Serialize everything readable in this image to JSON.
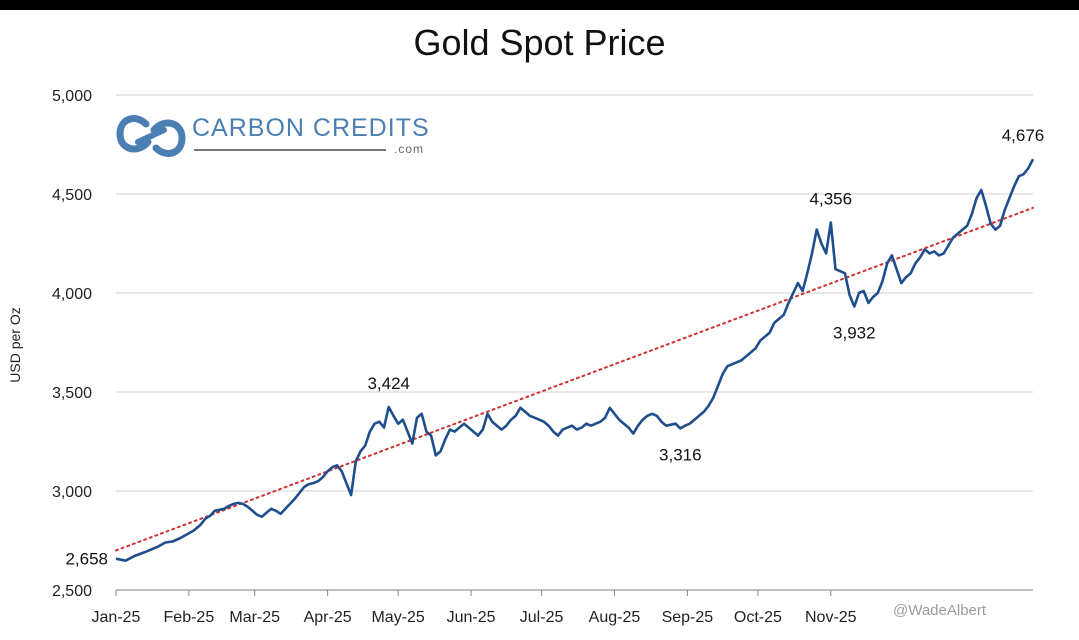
{
  "chart_data": {
    "type": "line",
    "title": "Gold Spot Price",
    "ylabel": "USD per Oz",
    "xlabel": "",
    "ylim": [
      2500,
      5000
    ],
    "yticks": [
      "2,500",
      "3,000",
      "3,500",
      "4,000",
      "4,500",
      "5,000"
    ],
    "ytick_values": [
      2500,
      3000,
      3500,
      4000,
      4500,
      5000
    ],
    "xtick_labels": [
      "Jan-25",
      "Feb-25",
      "Mar-25",
      "Apr-25",
      "May-25",
      "Jun-25",
      "Jul-25",
      "Aug-25",
      "Sep-25",
      "Oct-25",
      "Nov-25"
    ],
    "xtick_days": [
      0,
      31,
      59,
      90,
      120,
      151,
      181,
      212,
      243,
      273,
      304
    ],
    "xlim_days": [
      0,
      374
    ],
    "series": [
      {
        "name": "Gold Spot Price",
        "color": "#1f4e8c",
        "points": [
          [
            0,
            2658
          ],
          [
            4,
            2648
          ],
          [
            8,
            2672
          ],
          [
            12,
            2690
          ],
          [
            15,
            2705
          ],
          [
            18,
            2720
          ],
          [
            21,
            2740
          ],
          [
            24,
            2745
          ],
          [
            27,
            2760
          ],
          [
            30,
            2780
          ],
          [
            33,
            2800
          ],
          [
            36,
            2830
          ],
          [
            38,
            2860
          ],
          [
            40,
            2875
          ],
          [
            42,
            2900
          ],
          [
            44,
            2905
          ],
          [
            46,
            2910
          ],
          [
            48,
            2925
          ],
          [
            50,
            2935
          ],
          [
            52,
            2940
          ],
          [
            54,
            2935
          ],
          [
            56,
            2920
          ],
          [
            58,
            2900
          ],
          [
            60,
            2880
          ],
          [
            62,
            2870
          ],
          [
            64,
            2890
          ],
          [
            66,
            2910
          ],
          [
            68,
            2900
          ],
          [
            70,
            2885
          ],
          [
            72,
            2910
          ],
          [
            74,
            2935
          ],
          [
            76,
            2960
          ],
          [
            78,
            2990
          ],
          [
            80,
            3020
          ],
          [
            82,
            3035
          ],
          [
            84,
            3040
          ],
          [
            86,
            3050
          ],
          [
            88,
            3070
          ],
          [
            90,
            3100
          ],
          [
            92,
            3120
          ],
          [
            94,
            3130
          ],
          [
            96,
            3100
          ],
          [
            98,
            3040
          ],
          [
            100,
            2980
          ],
          [
            102,
            3150
          ],
          [
            104,
            3200
          ],
          [
            106,
            3230
          ],
          [
            108,
            3300
          ],
          [
            110,
            3340
          ],
          [
            112,
            3350
          ],
          [
            114,
            3320
          ],
          [
            116,
            3424
          ],
          [
            118,
            3380
          ],
          [
            120,
            3340
          ],
          [
            122,
            3360
          ],
          [
            124,
            3300
          ],
          [
            126,
            3240
          ],
          [
            128,
            3370
          ],
          [
            130,
            3390
          ],
          [
            132,
            3300
          ],
          [
            134,
            3280
          ],
          [
            136,
            3180
          ],
          [
            138,
            3200
          ],
          [
            140,
            3260
          ],
          [
            142,
            3310
          ],
          [
            144,
            3300
          ],
          [
            146,
            3320
          ],
          [
            148,
            3340
          ],
          [
            150,
            3320
          ],
          [
            152,
            3300
          ],
          [
            154,
            3280
          ],
          [
            156,
            3310
          ],
          [
            158,
            3390
          ],
          [
            160,
            3350
          ],
          [
            162,
            3330
          ],
          [
            164,
            3310
          ],
          [
            166,
            3330
          ],
          [
            168,
            3360
          ],
          [
            170,
            3380
          ],
          [
            172,
            3420
          ],
          [
            174,
            3400
          ],
          [
            176,
            3380
          ],
          [
            178,
            3370
          ],
          [
            180,
            3360
          ],
          [
            182,
            3350
          ],
          [
            184,
            3330
          ],
          [
            186,
            3300
          ],
          [
            188,
            3280
          ],
          [
            190,
            3310
          ],
          [
            192,
            3320
          ],
          [
            194,
            3330
          ],
          [
            196,
            3310
          ],
          [
            198,
            3320
          ],
          [
            200,
            3340
          ],
          [
            202,
            3330
          ],
          [
            204,
            3340
          ],
          [
            206,
            3350
          ],
          [
            208,
            3370
          ],
          [
            210,
            3420
          ],
          [
            212,
            3390
          ],
          [
            214,
            3360
          ],
          [
            216,
            3340
          ],
          [
            218,
            3320
          ],
          [
            220,
            3290
          ],
          [
            222,
            3330
          ],
          [
            224,
            3360
          ],
          [
            226,
            3380
          ],
          [
            228,
            3390
          ],
          [
            230,
            3380
          ],
          [
            232,
            3350
          ],
          [
            234,
            3330
          ],
          [
            236,
            3335
          ],
          [
            238,
            3340
          ],
          [
            240,
            3316
          ],
          [
            242,
            3330
          ],
          [
            244,
            3340
          ],
          [
            246,
            3360
          ],
          [
            248,
            3380
          ],
          [
            250,
            3400
          ],
          [
            252,
            3430
          ],
          [
            254,
            3470
          ],
          [
            256,
            3530
          ],
          [
            258,
            3590
          ],
          [
            260,
            3630
          ],
          [
            262,
            3640
          ],
          [
            264,
            3650
          ],
          [
            266,
            3660
          ],
          [
            268,
            3680
          ],
          [
            270,
            3700
          ],
          [
            272,
            3720
          ],
          [
            274,
            3760
          ],
          [
            276,
            3780
          ],
          [
            278,
            3800
          ],
          [
            280,
            3850
          ],
          [
            282,
            3870
          ],
          [
            284,
            3890
          ],
          [
            286,
            3950
          ],
          [
            288,
            4000
          ],
          [
            290,
            4050
          ],
          [
            292,
            4010
          ],
          [
            294,
            4100
          ],
          [
            296,
            4200
          ],
          [
            298,
            4320
          ],
          [
            300,
            4250
          ],
          [
            302,
            4200
          ],
          [
            304,
            4356
          ],
          [
            306,
            4120
          ],
          [
            308,
            4110
          ],
          [
            310,
            4100
          ],
          [
            312,
            3990
          ],
          [
            314,
            3932
          ],
          [
            316,
            4000
          ],
          [
            318,
            4010
          ],
          [
            320,
            3950
          ],
          [
            322,
            3980
          ],
          [
            324,
            4000
          ],
          [
            326,
            4060
          ],
          [
            328,
            4150
          ],
          [
            330,
            4190
          ],
          [
            332,
            4120
          ],
          [
            334,
            4050
          ],
          [
            336,
            4080
          ],
          [
            338,
            4100
          ],
          [
            340,
            4150
          ],
          [
            342,
            4180
          ],
          [
            344,
            4220
          ],
          [
            346,
            4200
          ],
          [
            348,
            4210
          ],
          [
            350,
            4190
          ],
          [
            352,
            4200
          ],
          [
            354,
            4240
          ],
          [
            356,
            4280
          ],
          [
            358,
            4300
          ],
          [
            360,
            4320
          ],
          [
            362,
            4340
          ],
          [
            364,
            4400
          ],
          [
            366,
            4480
          ],
          [
            368,
            4520
          ],
          [
            370,
            4440
          ],
          [
            372,
            4350
          ],
          [
            374,
            4320
          ],
          [
            376,
            4340
          ],
          [
            378,
            4420
          ],
          [
            380,
            4480
          ],
          [
            382,
            4540
          ],
          [
            384,
            4590
          ],
          [
            386,
            4600
          ],
          [
            388,
            4630
          ],
          [
            390,
            4676
          ]
        ]
      }
    ],
    "trendline": {
      "name": "Trend",
      "color": "#d03030",
      "start": [
        0,
        2700
      ],
      "end": [
        390,
        4430
      ]
    },
    "annotations": [
      {
        "label": "2,658",
        "day": 0,
        "value": 2658,
        "position": "left"
      },
      {
        "label": "3,424",
        "day": 116,
        "value": 3424,
        "position": "above"
      },
      {
        "label": "3,316",
        "day": 240,
        "value": 3316,
        "position": "below"
      },
      {
        "label": "4,356",
        "day": 304,
        "value": 4356,
        "position": "above"
      },
      {
        "label": "3,932",
        "day": 314,
        "value": 3932,
        "position": "below"
      },
      {
        "label": "4,676",
        "day": 390,
        "value": 4676,
        "position": "above"
      }
    ],
    "grid": true,
    "legend": "none"
  },
  "logo": {
    "text": "CARBON CREDITS",
    "suffix": ".com"
  },
  "watermark": {
    "text": "@WadeAlbert"
  }
}
